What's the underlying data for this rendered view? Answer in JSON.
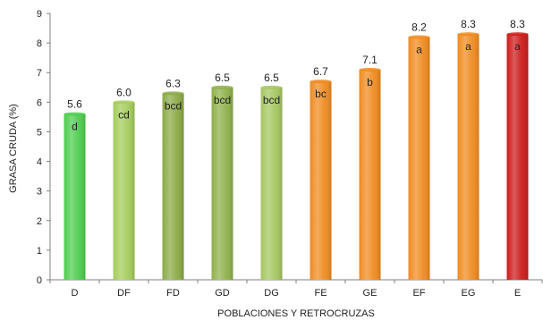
{
  "chart_data": {
    "type": "bar",
    "title": "",
    "xlabel": "POBLACIONES Y RETROCRUZAS",
    "ylabel": "GRASA CRUDA (%)",
    "ylim": [
      0,
      9
    ],
    "yticks": [
      "0",
      "1",
      "2",
      "3",
      "4",
      "5",
      "6",
      "7",
      "8",
      "9"
    ],
    "grid": false,
    "legend": "none",
    "categories": [
      "D",
      "DF",
      "FD",
      "GD",
      "DG",
      "FE",
      "GE",
      "EF",
      "EG",
      "E"
    ],
    "values": [
      5.6,
      6.0,
      6.3,
      6.5,
      6.5,
      6.7,
      7.1,
      8.2,
      8.3,
      8.3
    ],
    "value_labels": [
      "5.6",
      "6.0",
      "6.3",
      "6.5",
      "6.5",
      "6.7",
      "7.1",
      "8.2",
      "8.3",
      "8.3"
    ],
    "group_labels": [
      "d",
      "cd",
      "bcd",
      "bcd",
      "bcd",
      "bc",
      "b",
      "a",
      "a",
      "a"
    ],
    "bar_colors": [
      "#4dcc4d",
      "#a3cc5a",
      "#8aaa45",
      "#8eb04a",
      "#a4c660",
      "#f08a1e",
      "#f08a1e",
      "#f08a1e",
      "#f08a1e",
      "#cc1a1a"
    ]
  }
}
